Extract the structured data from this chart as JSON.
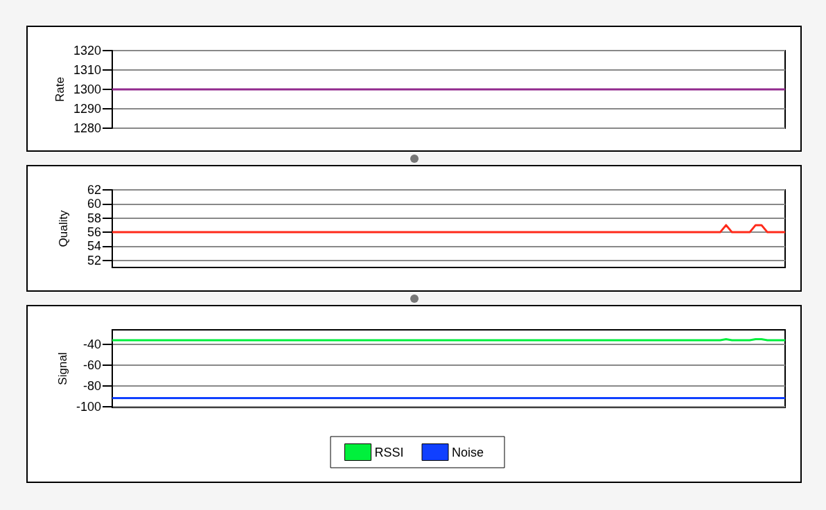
{
  "chart_data": [
    {
      "type": "line",
      "ylabel": "Rate",
      "categories": [
        null,
        null,
        null,
        null,
        null,
        null,
        null,
        null,
        null,
        null,
        null,
        null,
        null,
        null,
        null,
        null,
        null,
        null,
        null,
        null,
        null,
        null,
        null,
        null,
        null,
        null,
        null,
        null,
        null,
        null,
        null,
        null,
        null,
        null,
        null,
        null,
        null,
        null,
        null,
        null,
        null,
        null,
        null,
        null,
        null,
        null,
        null,
        null,
        null,
        null,
        null,
        null,
        null,
        null,
        null,
        null,
        null,
        null,
        null,
        null,
        null,
        null,
        null,
        null,
        null,
        null,
        null,
        null,
        null,
        null,
        null,
        null,
        null,
        null,
        null,
        null,
        null,
        null,
        null,
        null,
        null,
        null,
        null,
        null,
        null,
        null,
        null,
        null,
        null,
        null,
        null,
        null,
        null,
        null,
        null,
        null,
        null,
        null,
        null,
        null,
        null,
        null,
        null,
        null,
        null,
        null,
        null,
        null,
        null,
        null,
        null,
        null,
        null,
        null,
        null
      ],
      "series": [
        {
          "color": "#922a8e",
          "values": [
            1300,
            1300,
            1300,
            1300,
            1300,
            1300,
            1300,
            1300,
            1300,
            1300,
            1300,
            1300,
            1300,
            1300,
            1300,
            1300,
            1300,
            1300,
            1300,
            1300,
            1300,
            1300,
            1300,
            1300,
            1300,
            1300,
            1300,
            1300,
            1300,
            1300,
            1300,
            1300,
            1300,
            1300,
            1300,
            1300,
            1300,
            1300,
            1300,
            1300,
            1300,
            1300,
            1300,
            1300,
            1300,
            1300,
            1300,
            1300,
            1300,
            1300,
            1300,
            1300,
            1300,
            1300,
            1300,
            1300,
            1300,
            1300,
            1300,
            1300,
            1300,
            1300,
            1300,
            1300,
            1300,
            1300,
            1300,
            1300,
            1300,
            1300,
            1300,
            1300,
            1300,
            1300,
            1300,
            1300,
            1300,
            1300,
            1300,
            1300,
            1300,
            1300,
            1300,
            1300,
            1300,
            1300,
            1300,
            1300,
            1300,
            1300,
            1300,
            1300,
            1300,
            1300,
            1300,
            1300,
            1300,
            1300,
            1300,
            1300,
            1300,
            1300,
            1300,
            1300,
            1300,
            1300,
            1300,
            1300,
            1300,
            1300,
            1300,
            1300,
            1300,
            1300,
            1300
          ]
        }
      ],
      "ylim": [
        1280,
        1320
      ],
      "yticks": [
        1280,
        1290,
        1300,
        1310,
        1320
      ],
      "grid": "y",
      "tick_labels": "y",
      "line_style": "solid"
    },
    {
      "type": "line",
      "ylabel": "Quality",
      "categories": [
        null,
        null,
        null,
        null,
        null,
        null,
        null,
        null,
        null,
        null,
        null,
        null,
        null,
        null,
        null,
        null,
        null,
        null,
        null,
        null,
        null,
        null,
        null,
        null,
        null,
        null,
        null,
        null,
        null,
        null,
        null,
        null,
        null,
        null,
        null,
        null,
        null,
        null,
        null,
        null,
        null,
        null,
        null,
        null,
        null,
        null,
        null,
        null,
        null,
        null,
        null,
        null,
        null,
        null,
        null,
        null,
        null,
        null,
        null,
        null,
        null,
        null,
        null,
        null,
        null,
        null,
        null,
        null,
        null,
        null,
        null,
        null,
        null,
        null,
        null,
        null,
        null,
        null,
        null,
        null,
        null,
        null,
        null,
        null,
        null,
        null,
        null,
        null,
        null,
        null,
        null,
        null,
        null,
        null,
        null,
        null,
        null,
        null,
        null,
        null,
        null,
        null,
        null,
        null,
        null,
        null,
        null,
        null,
        null,
        null,
        null,
        null,
        null,
        null,
        null
      ],
      "series": [
        {
          "color": "#ff2a1a",
          "values": [
            56,
            56,
            56,
            56,
            56,
            56,
            56,
            56,
            56,
            56,
            56,
            56,
            56,
            56,
            56,
            56,
            56,
            56,
            56,
            56,
            56,
            56,
            56,
            56,
            56,
            56,
            56,
            56,
            56,
            56,
            56,
            56,
            56,
            56,
            56,
            56,
            56,
            56,
            56,
            56,
            56,
            56,
            56,
            56,
            56,
            56,
            56,
            56,
            56,
            56,
            56,
            56,
            56,
            56,
            56,
            56,
            56,
            56,
            56,
            56,
            56,
            56,
            56,
            56,
            56,
            56,
            56,
            56,
            56,
            56,
            56,
            56,
            56,
            56,
            56,
            56,
            56,
            56,
            56,
            56,
            56,
            56,
            56,
            56,
            56,
            56,
            56,
            56,
            56,
            56,
            56,
            56,
            56,
            56,
            56,
            56,
            56,
            56,
            56,
            56,
            56,
            56,
            56,
            56,
            57,
            56,
            56,
            56,
            56,
            57,
            57,
            56,
            56,
            56,
            56
          ]
        }
      ],
      "ylim": [
        51,
        62
      ],
      "yticks": [
        52,
        54,
        56,
        58,
        60,
        62
      ],
      "grid": "y",
      "tick_labels": "y",
      "line_style": "solid"
    },
    {
      "type": "line",
      "ylabel": "Signal",
      "categories": [
        null,
        null,
        null,
        null,
        null,
        null,
        null,
        null,
        null,
        null,
        null,
        null,
        null,
        null,
        null,
        null,
        null,
        null,
        null,
        null,
        null,
        null,
        null,
        null,
        null,
        null,
        null,
        null,
        null,
        null,
        null,
        null,
        null,
        null,
        null,
        null,
        null,
        null,
        null,
        null,
        null,
        null,
        null,
        null,
        null,
        null,
        null,
        null,
        null,
        null,
        null,
        null,
        null,
        null,
        null,
        null,
        null,
        null,
        null,
        null,
        null,
        null,
        null,
        null,
        null,
        null,
        null,
        null,
        null,
        null,
        null,
        null,
        null,
        null,
        null,
        null,
        null,
        null,
        null,
        null,
        null,
        null,
        null,
        null,
        null,
        null,
        null,
        null,
        null,
        null,
        null,
        null,
        null,
        null,
        null,
        null,
        null,
        null,
        null,
        null,
        null,
        null,
        null,
        null,
        null,
        null,
        null,
        null,
        null,
        null,
        null,
        null,
        null,
        null,
        null
      ],
      "series": [
        {
          "name": "RSSI",
          "color": "#00f03c",
          "values": [
            -36,
            -36,
            -36,
            -36,
            -36,
            -36,
            -36,
            -36,
            -36,
            -36,
            -36,
            -36,
            -36,
            -36,
            -36,
            -36,
            -36,
            -36,
            -36,
            -36,
            -36,
            -36,
            -36,
            -36,
            -36,
            -36,
            -36,
            -36,
            -36,
            -36,
            -36,
            -36,
            -36,
            -36,
            -36,
            -36,
            -36,
            -36,
            -36,
            -36,
            -36,
            -36,
            -36,
            -36,
            -36,
            -36,
            -36,
            -36,
            -36,
            -36,
            -36,
            -36,
            -36,
            -36,
            -36,
            -36,
            -36,
            -36,
            -36,
            -36,
            -36,
            -36,
            -36,
            -36,
            -36,
            -36,
            -36,
            -36,
            -36,
            -36,
            -36,
            -36,
            -36,
            -36,
            -36,
            -36,
            -36,
            -36,
            -36,
            -36,
            -36,
            -36,
            -36,
            -36,
            -36,
            -36,
            -36,
            -36,
            -36,
            -36,
            -36,
            -36,
            -36,
            -36,
            -36,
            -36,
            -36,
            -36,
            -36,
            -36,
            -36,
            -36,
            -36,
            -36,
            -35,
            -36,
            -36,
            -36,
            -36,
            -35,
            -35,
            -36,
            -36,
            -36,
            -36
          ]
        },
        {
          "name": "Noise",
          "color": "#1040ff",
          "values": [
            -92,
            -92,
            -92,
            -92,
            -92,
            -92,
            -92,
            -92,
            -92,
            -92,
            -92,
            -92,
            -92,
            -92,
            -92,
            -92,
            -92,
            -92,
            -92,
            -92,
            -92,
            -92,
            -92,
            -92,
            -92,
            -92,
            -92,
            -92,
            -92,
            -92,
            -92,
            -92,
            -92,
            -92,
            -92,
            -92,
            -92,
            -92,
            -92,
            -92,
            -92,
            -92,
            -92,
            -92,
            -92,
            -92,
            -92,
            -92,
            -92,
            -92,
            -92,
            -92,
            -92,
            -92,
            -92,
            -92,
            -92,
            -92,
            -92,
            -92,
            -92,
            -92,
            -92,
            -92,
            -92,
            -92,
            -92,
            -92,
            -92,
            -92,
            -92,
            -92,
            -92,
            -92,
            -92,
            -92,
            -92,
            -92,
            -92,
            -92,
            -92,
            -92,
            -92,
            -92,
            -92,
            -92,
            -92,
            -92,
            -92,
            -92,
            -92,
            -92,
            -92,
            -92,
            -92,
            -92,
            -92,
            -92,
            -92,
            -92,
            -92,
            -92,
            -92,
            -92,
            -92,
            -92,
            -92,
            -92,
            -92,
            -92,
            -92,
            -92,
            -92,
            -92,
            -92
          ]
        }
      ],
      "ylim": [
        -101,
        -26
      ],
      "yticks": [
        -100,
        -80,
        -60,
        -40
      ],
      "grid": "y",
      "tick_labels": "y",
      "legend": "bottom",
      "line_style": "solid"
    }
  ]
}
